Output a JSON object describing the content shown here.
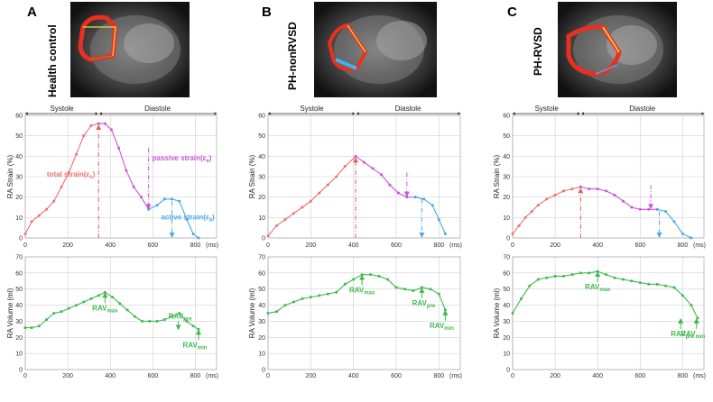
{
  "panels": [
    {
      "letter": "A",
      "group": "Health control",
      "phase_left": "Systole",
      "phase_right": "Diastole",
      "strain_annotations": {
        "total": "total strain(ε",
        "total_sub": "s",
        "total_close": ")",
        "passive": "passive strain(ε",
        "passive_sub": "e",
        "passive_close": ")",
        "active": "active strain(ε",
        "active_sub": "a",
        "active_close": ")"
      },
      "volume_annotations": {
        "max": "RAV",
        "max_sub": "max",
        "pre": "RAV",
        "pre_sub": "pre",
        "min": "RAV",
        "min_sub": "min"
      }
    },
    {
      "letter": "B",
      "group": "PH-nonRVSD",
      "phase_left": "Systole",
      "phase_right": "Diastole",
      "volume_annotations": {
        "max": "RAV",
        "max_sub": "max",
        "pre": "RAV",
        "pre_sub": "pre",
        "min": "RAV",
        "min_sub": "min"
      }
    },
    {
      "letter": "C",
      "group": "PH-RVSD",
      "phase_left": "Systole",
      "phase_right": "Diastole",
      "volume_annotations": {
        "max": "RAV",
        "max_sub": "max",
        "pre": "RAV",
        "pre_sub": "pre",
        "min": "RAV",
        "min_sub": "min"
      }
    }
  ],
  "colors": {
    "strain_systole": "#f07070",
    "strain_passive": "#cc55dd",
    "strain_active": "#4aa8e8",
    "volume": "#3dbb4d",
    "grid": "#d0d0d0",
    "total_marker": "#e06060",
    "passive_marker": "#cc55dd",
    "active_marker": "#4aa8e8"
  },
  "chart_data": [
    {
      "type": "line",
      "panel": "A",
      "ylabel": "RA Strain  (%)",
      "xlabel": "(ms)",
      "xlim": [
        0,
        900
      ],
      "ylim": [
        0,
        60
      ],
      "xticks": [
        0,
        200,
        400,
        600,
        800
      ],
      "yticks": [
        0,
        10,
        20,
        30,
        40,
        50,
        60
      ],
      "grid": true,
      "series": [
        {
          "color_key": "strain_systole",
          "x": [
            0,
            30,
            65,
            100,
            135,
            170,
            205,
            240,
            275,
            310,
            345
          ],
          "y": [
            2,
            8,
            11,
            14,
            18,
            25,
            32,
            41,
            50,
            55,
            56
          ]
        },
        {
          "color_key": "strain_passive",
          "x": [
            345,
            375,
            405,
            440,
            475,
            510,
            545,
            580
          ],
          "y": [
            56,
            56,
            53,
            44,
            33,
            25,
            20,
            14
          ]
        },
        {
          "color_key": "strain_active",
          "x": [
            580,
            620,
            655,
            690,
            725,
            760,
            790,
            815
          ],
          "y": [
            14,
            16,
            19,
            19,
            18,
            9,
            2,
            0
          ]
        }
      ],
      "markers": {
        "total_x": 345,
        "passive_x": 580,
        "active_x": 690
      }
    },
    {
      "type": "line",
      "panel": "B",
      "ylabel": "RA Strain  (%)",
      "xlabel": "(ms)",
      "xlim": [
        0,
        900
      ],
      "ylim": [
        0,
        60
      ],
      "xticks": [
        0,
        200,
        400,
        600,
        800
      ],
      "yticks": [
        0,
        10,
        20,
        30,
        40,
        50,
        60
      ],
      "grid": true,
      "series": [
        {
          "color_key": "strain_systole",
          "x": [
            0,
            40,
            80,
            120,
            160,
            200,
            240,
            280,
            320,
            360,
            410
          ],
          "y": [
            1,
            6,
            9,
            12,
            15,
            18,
            22,
            26,
            30,
            35,
            40
          ]
        },
        {
          "color_key": "strain_passive",
          "x": [
            410,
            450,
            490,
            530,
            570,
            610,
            650,
            690
          ],
          "y": [
            40,
            37,
            34,
            31,
            26,
            22,
            20,
            20
          ]
        },
        {
          "color_key": "strain_active",
          "x": [
            690,
            730,
            770,
            800,
            830
          ],
          "y": [
            20,
            19,
            16,
            9,
            2
          ]
        }
      ],
      "markers": {
        "total_x": 410,
        "passive_x": 650,
        "active_x": 720
      }
    },
    {
      "type": "line",
      "panel": "C",
      "ylabel": "RA Strain  (%)",
      "xlabel": "(ms)",
      "xlim": [
        0,
        900
      ],
      "ylim": [
        0,
        60
      ],
      "xticks": [
        0,
        200,
        400,
        600,
        800
      ],
      "yticks": [
        0,
        10,
        20,
        30,
        40,
        50,
        60
      ],
      "grid": true,
      "series": [
        {
          "color_key": "strain_systole",
          "x": [
            0,
            30,
            60,
            90,
            120,
            160,
            200,
            240,
            280,
            320
          ],
          "y": [
            2,
            6,
            10,
            13,
            16,
            19,
            21,
            23,
            24,
            25
          ]
        },
        {
          "color_key": "strain_passive",
          "x": [
            320,
            360,
            400,
            440,
            480,
            520,
            560,
            600,
            640,
            680
          ],
          "y": [
            25,
            24,
            24,
            23,
            21,
            18,
            15,
            14,
            14,
            14
          ]
        },
        {
          "color_key": "strain_active",
          "x": [
            680,
            720,
            760,
            800,
            840
          ],
          "y": [
            14,
            13,
            8,
            2,
            0
          ]
        }
      ],
      "markers": {
        "total_x": 320,
        "passive_x": 650,
        "active_x": 690
      }
    },
    {
      "type": "line",
      "panel": "A",
      "ylabel": "RA Volume  (ml)",
      "xlabel": "(ms)",
      "xlim": [
        0,
        900
      ],
      "ylim": [
        0,
        70
      ],
      "xticks": [
        0,
        200,
        400,
        600,
        800
      ],
      "yticks": [
        0,
        10,
        20,
        30,
        40,
        50,
        60,
        70
      ],
      "grid": true,
      "series": [
        {
          "color_key": "volume",
          "x": [
            0,
            30,
            65,
            100,
            135,
            170,
            205,
            240,
            275,
            310,
            345,
            375,
            410,
            445,
            480,
            515,
            550,
            585,
            620,
            655,
            690,
            725,
            760,
            790,
            815
          ],
          "y": [
            26,
            26,
            27,
            31,
            35,
            36,
            38,
            40,
            42,
            44,
            46,
            48,
            45,
            41,
            37,
            33,
            30,
            30,
            30,
            31,
            33,
            35,
            30,
            27,
            25
          ]
        }
      ],
      "markers": {
        "max_x": 375,
        "pre_x": 720,
        "min_x": 815
      }
    },
    {
      "type": "line",
      "panel": "B",
      "ylabel": "RA Volume  (ml)",
      "xlabel": "(ms)",
      "xlim": [
        0,
        900
      ],
      "ylim": [
        0,
        70
      ],
      "xticks": [
        0,
        200,
        400,
        600,
        800
      ],
      "yticks": [
        0,
        10,
        20,
        30,
        40,
        50,
        60,
        70
      ],
      "grid": true,
      "series": [
        {
          "color_key": "volume",
          "x": [
            0,
            40,
            80,
            120,
            160,
            200,
            240,
            280,
            320,
            360,
            400,
            440,
            480,
            520,
            560,
            600,
            640,
            680,
            720,
            760,
            800,
            830
          ],
          "y": [
            35,
            36,
            40,
            42,
            44,
            45,
            46,
            47,
            48,
            53,
            56,
            59,
            59,
            58,
            56,
            51,
            50,
            49,
            51,
            50,
            47,
            37
          ]
        }
      ],
      "markers": {
        "max_x": 440,
        "pre_x": 720,
        "min_x": 830
      }
    },
    {
      "type": "line",
      "panel": "C",
      "ylabel": "RA Volume  (ml)",
      "xlabel": "(ms)",
      "xlim": [
        0,
        900
      ],
      "ylim": [
        0,
        70
      ],
      "xticks": [
        0,
        200,
        400,
        600,
        800
      ],
      "yticks": [
        0,
        10,
        20,
        30,
        40,
        50,
        60,
        70
      ],
      "grid": true,
      "series": [
        {
          "color_key": "volume",
          "x": [
            0,
            40,
            80,
            120,
            160,
            200,
            240,
            280,
            320,
            360,
            400,
            440,
            480,
            520,
            560,
            600,
            640,
            680,
            720,
            760,
            800,
            840,
            870
          ],
          "y": [
            35,
            44,
            52,
            56,
            57,
            58,
            58,
            59,
            60,
            60,
            61,
            59,
            57,
            56,
            55,
            54,
            53,
            53,
            52,
            51,
            46,
            40,
            32
          ]
        }
      ],
      "markers": {
        "max_x": 400,
        "pre_x": 790,
        "min_x": 865
      }
    }
  ]
}
